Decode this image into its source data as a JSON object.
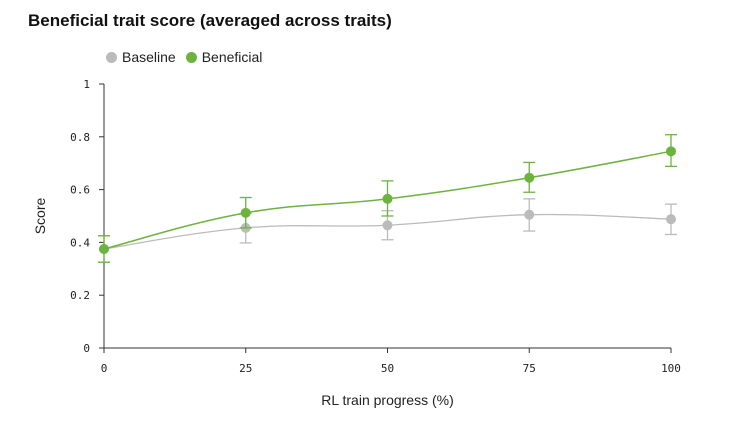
{
  "chart_data": {
    "type": "line",
    "title": "Beneficial trait score (averaged across traits)",
    "xlabel": "RL train progress (%)",
    "ylabel": "Score",
    "x": [
      0,
      25,
      50,
      75,
      100
    ],
    "xlim": [
      0,
      100
    ],
    "ylim": [
      0,
      1
    ],
    "xticks": [
      "0",
      "25",
      "50",
      "75",
      "100"
    ],
    "yticks": [
      "0",
      "0.2",
      "0.4",
      "0.6",
      "0.8",
      "1"
    ],
    "grid": false,
    "legend_position": "top-left",
    "series": [
      {
        "name": "Baseline",
        "color": "#bbbbbb",
        "values": [
          0.375,
          0.455,
          0.465,
          0.505,
          0.488
        ],
        "err_low": [
          0.325,
          0.398,
          0.41,
          0.443,
          0.43
        ],
        "err_high": [
          0.425,
          0.51,
          0.52,
          0.565,
          0.545
        ]
      },
      {
        "name": "Beneficial",
        "color": "#6db33f",
        "values": [
          0.375,
          0.512,
          0.565,
          0.645,
          0.745
        ],
        "err_low": [
          0.325,
          0.455,
          0.5,
          0.59,
          0.688
        ],
        "err_high": [
          0.425,
          0.57,
          0.633,
          0.703,
          0.808
        ]
      }
    ]
  }
}
